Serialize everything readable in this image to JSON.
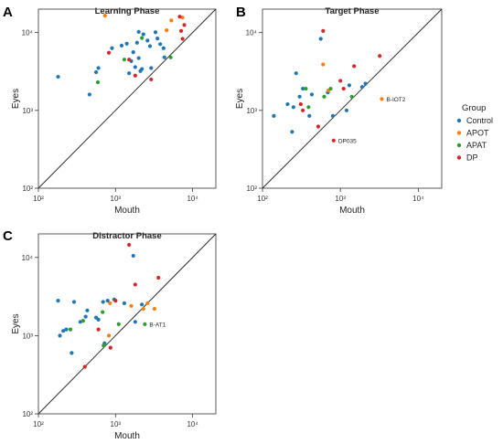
{
  "legend": {
    "title": "Group",
    "entries": [
      {
        "label": "Control",
        "color": "#1f77b4"
      },
      {
        "label": "APOT",
        "color": "#ff7f0e"
      },
      {
        "label": "APAT",
        "color": "#2ca02c"
      },
      {
        "label": "DP",
        "color": "#d62728"
      }
    ]
  },
  "chart_data": [
    {
      "type": "scatter",
      "panel_letter": "A",
      "title": "Learning Phase",
      "xlabel": "Mouth",
      "ylabel": "Eyes",
      "xscale": "log",
      "yscale": "log",
      "xlim": [
        100,
        20000
      ],
      "ylim": [
        100,
        20000
      ],
      "xticks": [
        {
          "value": 100,
          "label": "10²"
        },
        {
          "value": 1000,
          "label": "10³"
        },
        {
          "value": 10000,
          "label": "10⁴"
        }
      ],
      "yticks": [
        {
          "value": 100,
          "label": "10²"
        },
        {
          "value": 1000,
          "label": "10³"
        },
        {
          "value": 10000,
          "label": "10⁴"
        }
      ],
      "identity_line": true,
      "series": [
        {
          "name": "Control",
          "points": [
            [
              180,
              2700
            ],
            [
              460,
              1600
            ],
            [
              560,
              3100
            ],
            [
              600,
              3500
            ],
            [
              900,
              6300
            ],
            [
              1200,
              6800
            ],
            [
              1400,
              7200
            ],
            [
              1500,
              3000
            ],
            [
              1600,
              4300
            ],
            [
              1700,
              5600
            ],
            [
              1800,
              3600
            ],
            [
              1900,
              7400
            ],
            [
              2000,
              10200
            ],
            [
              2000,
              4700
            ],
            [
              2100,
              3200
            ],
            [
              2200,
              3400
            ],
            [
              2300,
              9500
            ],
            [
              2600,
              7900
            ],
            [
              2800,
              6700
            ],
            [
              2900,
              3500
            ],
            [
              3300,
              10100
            ],
            [
              3500,
              8400
            ],
            [
              3800,
              7100
            ],
            [
              4200,
              6300
            ],
            [
              4300,
              4800
            ]
          ]
        },
        {
          "name": "APOT",
          "points": [
            [
              730,
              16500
            ],
            [
              4600,
              10700
            ],
            [
              5300,
              14300
            ],
            [
              7400,
              15600
            ]
          ]
        },
        {
          "name": "APAT",
          "points": [
            [
              590,
              2300
            ],
            [
              1300,
              4500
            ],
            [
              2200,
              8500
            ],
            [
              5200,
              4800
            ]
          ]
        },
        {
          "name": "DP",
          "points": [
            [
              820,
              5500
            ],
            [
              1500,
              4500
            ],
            [
              1800,
              2800
            ],
            [
              2900,
              2500
            ],
            [
              6800,
              16000
            ],
            [
              7100,
              10500
            ],
            [
              7400,
              8300
            ],
            [
              7800,
              12500
            ]
          ]
        }
      ],
      "annotations": []
    },
    {
      "type": "scatter",
      "panel_letter": "B",
      "title": "Target Phase",
      "xlabel": "Mouth",
      "ylabel": "Eyes",
      "xscale": "log",
      "yscale": "log",
      "xlim": [
        100,
        20000
      ],
      "ylim": [
        100,
        20000
      ],
      "xticks": [
        {
          "value": 100,
          "label": "10²"
        },
        {
          "value": 1000,
          "label": "10³"
        },
        {
          "value": 10000,
          "label": "10⁴"
        }
      ],
      "yticks": [
        {
          "value": 100,
          "label": "10²"
        },
        {
          "value": 1000,
          "label": "10³"
        },
        {
          "value": 10000,
          "label": "10⁴"
        }
      ],
      "identity_line": true,
      "series": [
        {
          "name": "Control",
          "points": [
            [
              140,
              850
            ],
            [
              210,
              1200
            ],
            [
              240,
              530
            ],
            [
              250,
              1100
            ],
            [
              270,
              3000
            ],
            [
              300,
              1500
            ],
            [
              330,
              1900
            ],
            [
              400,
              850
            ],
            [
              430,
              1600
            ],
            [
              560,
              8300
            ],
            [
              690,
              1700
            ],
            [
              800,
              850
            ],
            [
              1200,
              1000
            ],
            [
              1300,
              2100
            ],
            [
              1900,
              2000
            ],
            [
              2100,
              2200
            ]
          ]
        },
        {
          "name": "APOT",
          "points": [
            [
              600,
              3900
            ],
            [
              700,
              1800
            ],
            [
              3400,
              1400
            ]
          ]
        },
        {
          "name": "APAT",
          "points": [
            [
              360,
              1900
            ],
            [
              390,
              1100
            ],
            [
              620,
              1500
            ],
            [
              750,
              1900
            ],
            [
              1400,
              1500
            ]
          ]
        },
        {
          "name": "DP",
          "points": [
            [
              310,
              1200
            ],
            [
              330,
              1000
            ],
            [
              520,
              620
            ],
            [
              600,
              10500
            ],
            [
              820,
              410
            ],
            [
              1000,
              2400
            ],
            [
              1100,
              1900
            ],
            [
              1500,
              3700
            ],
            [
              3200,
              5000
            ]
          ]
        }
      ],
      "annotations": [
        {
          "text": "B-IOT2",
          "x": 3400,
          "y": 1400
        },
        {
          "text": "DP035",
          "x": 820,
          "y": 410
        }
      ]
    },
    {
      "type": "scatter",
      "panel_letter": "C",
      "title": "Distractor Phase",
      "xlabel": "Mouth",
      "ylabel": "Eyes",
      "xscale": "log",
      "yscale": "log",
      "xlim": [
        100,
        20000
      ],
      "ylim": [
        100,
        20000
      ],
      "xticks": [
        {
          "value": 100,
          "label": "10²"
        },
        {
          "value": 1000,
          "label": "10³"
        },
        {
          "value": 10000,
          "label": "10⁴"
        }
      ],
      "yticks": [
        {
          "value": 100,
          "label": "10²"
        },
        {
          "value": 1000,
          "label": "10³"
        },
        {
          "value": 10000,
          "label": "10⁴"
        }
      ],
      "identity_line": true,
      "series": [
        {
          "name": "Control",
          "points": [
            [
              180,
              2800
            ],
            [
              190,
              1000
            ],
            [
              210,
              1150
            ],
            [
              230,
              1200
            ],
            [
              270,
              600
            ],
            [
              290,
              2700
            ],
            [
              350,
              1500
            ],
            [
              410,
              1750
            ],
            [
              430,
              2100
            ],
            [
              560,
              1700
            ],
            [
              600,
              1600
            ],
            [
              690,
              2700
            ],
            [
              720,
              800
            ],
            [
              790,
              2800
            ],
            [
              960,
              2900
            ],
            [
              1300,
              2600
            ],
            [
              1700,
              10500
            ],
            [
              1800,
              1500
            ],
            [
              2200,
              2500
            ]
          ]
        },
        {
          "name": "APOT",
          "points": [
            [
              820,
              1000
            ],
            [
              850,
              2600
            ],
            [
              1600,
              2400
            ],
            [
              2300,
              2200
            ],
            [
              2600,
              2600
            ],
            [
              3200,
              2200
            ]
          ]
        },
        {
          "name": "APAT",
          "points": [
            [
              260,
              1200
            ],
            [
              380,
              1550
            ],
            [
              680,
              2000
            ],
            [
              700,
              750
            ],
            [
              1100,
              1400
            ],
            [
              2400,
              1400
            ]
          ]
        },
        {
          "name": "DP",
          "points": [
            [
              400,
              400
            ],
            [
              600,
              1200
            ],
            [
              860,
              700
            ],
            [
              1000,
              2800
            ],
            [
              1500,
              14500
            ],
            [
              1800,
              4500
            ],
            [
              3600,
              5500
            ]
          ]
        }
      ],
      "annotations": [
        {
          "text": "B-AT1",
          "x": 2400,
          "y": 1400
        }
      ]
    }
  ]
}
